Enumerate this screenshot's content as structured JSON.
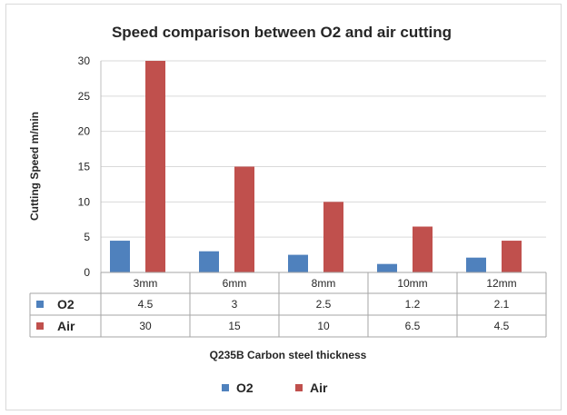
{
  "chart_data": {
    "type": "bar",
    "title": "Speed comparison between O2 and air cutting",
    "xlabel": "Q235B Carbon steel thickness",
    "ylabel": "Cutting Speed m/min",
    "categories": [
      "3mm",
      "6mm",
      "8mm",
      "10mm",
      "12mm"
    ],
    "ylim": [
      0,
      30
    ],
    "yticks": [
      0,
      5,
      10,
      15,
      20,
      25,
      30
    ],
    "grid": true,
    "legend_position": "bottom",
    "data_table": true,
    "series": [
      {
        "name": "O2",
        "color": "#4f81bd",
        "values": [
          4.5,
          3,
          2.5,
          1.2,
          2.1
        ],
        "labels": [
          "4.5",
          "3",
          "2.5",
          "1.2",
          "2.1"
        ]
      },
      {
        "name": "Air",
        "color": "#c0504d",
        "values": [
          30,
          15,
          10,
          6.5,
          4.5
        ],
        "labels": [
          "30",
          "15",
          "10",
          "6.5",
          "4.5"
        ]
      }
    ]
  }
}
